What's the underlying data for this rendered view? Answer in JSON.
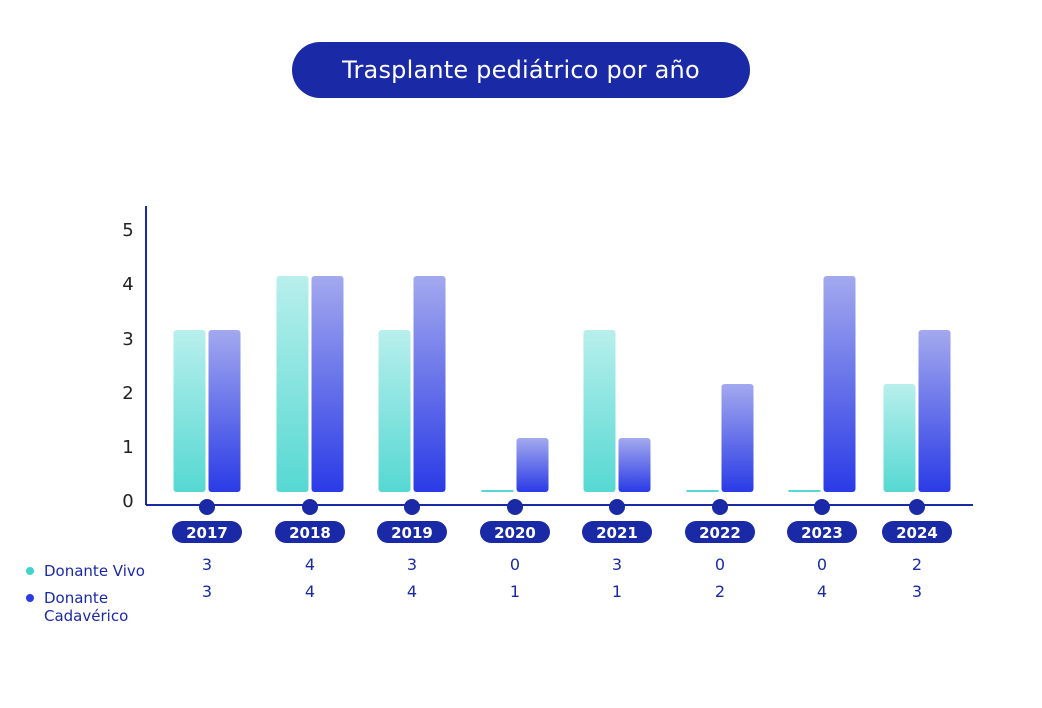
{
  "chart_data": {
    "type": "bar",
    "title": "Trasplante pediátrico por año",
    "categories": [
      "2017",
      "2018",
      "2019",
      "2020",
      "2021",
      "2022",
      "2023",
      "2024"
    ],
    "series": [
      {
        "name": "Donante Vivo",
        "values": [
          3,
          4,
          3,
          0,
          3,
          0,
          0,
          2
        ],
        "color_top": "#b8efec",
        "color_bottom": "#56d8d2"
      },
      {
        "name": "Donante Cadavérico",
        "values": [
          3,
          4,
          4,
          1,
          1,
          2,
          4,
          3
        ],
        "color_top": "#a3a9ee",
        "color_bottom": "#2a3be6"
      }
    ],
    "ylim": [
      0,
      5
    ],
    "yticks": [
      "0",
      "1",
      "2",
      "3",
      "4",
      "5"
    ],
    "grid": false,
    "legend_position": "bottom-left",
    "colors": {
      "axis": "#1a2aa6",
      "label": "#1a2aa6",
      "pill": "#1a2aa6",
      "vivo_dot": "#3fd3cc",
      "cadaverico_dot": "#2a3be6"
    }
  }
}
